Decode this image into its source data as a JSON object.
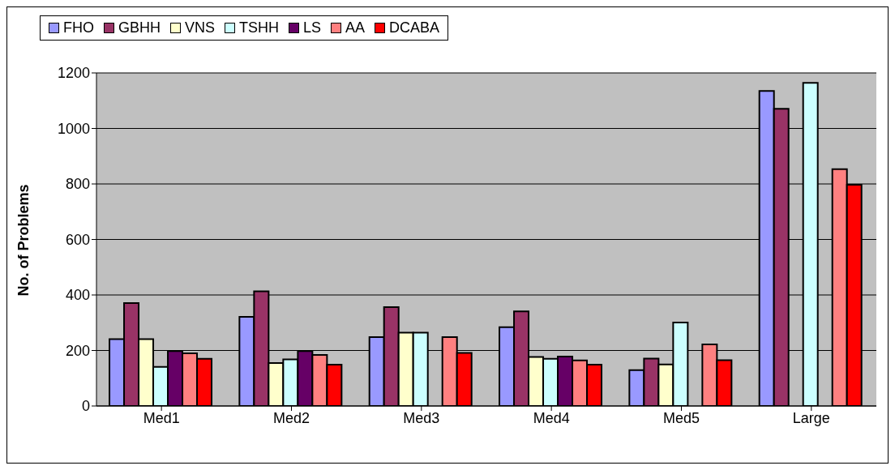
{
  "chart_data": {
    "type": "bar",
    "ylabel": "No. of Problems",
    "categories": [
      "Med1",
      "Med2",
      "Med3",
      "Med4",
      "Med5",
      "Large"
    ],
    "ylim": [
      0,
      1200
    ],
    "yticks": [
      0,
      200,
      400,
      600,
      800,
      1000,
      1200
    ],
    "grid": "y",
    "legend": "top",
    "series": [
      {
        "name": "FHO",
        "color": "#9999ff",
        "values": [
          241,
          321,
          248,
          284,
          129,
          1135
        ]
      },
      {
        "name": "GBHH",
        "color": "#993366",
        "values": [
          371,
          413,
          356,
          341,
          171,
          1071
        ]
      },
      {
        "name": "VNS",
        "color": "#ffffcc",
        "values": [
          241,
          155,
          264,
          177,
          150,
          null
        ]
      },
      {
        "name": "TSHH",
        "color": "#ccffff",
        "values": [
          141,
          168,
          264,
          170,
          301,
          1164
        ]
      },
      {
        "name": "LS",
        "color": "#660066",
        "values": [
          198,
          198,
          null,
          178,
          null,
          null
        ]
      },
      {
        "name": "AA",
        "color": "#ff8080",
        "values": [
          190,
          184,
          248,
          164,
          222,
          853
        ]
      },
      {
        "name": "DCABA",
        "color": "#ff0000",
        "values": [
          170,
          149,
          191,
          149,
          165,
          797
        ]
      }
    ]
  }
}
